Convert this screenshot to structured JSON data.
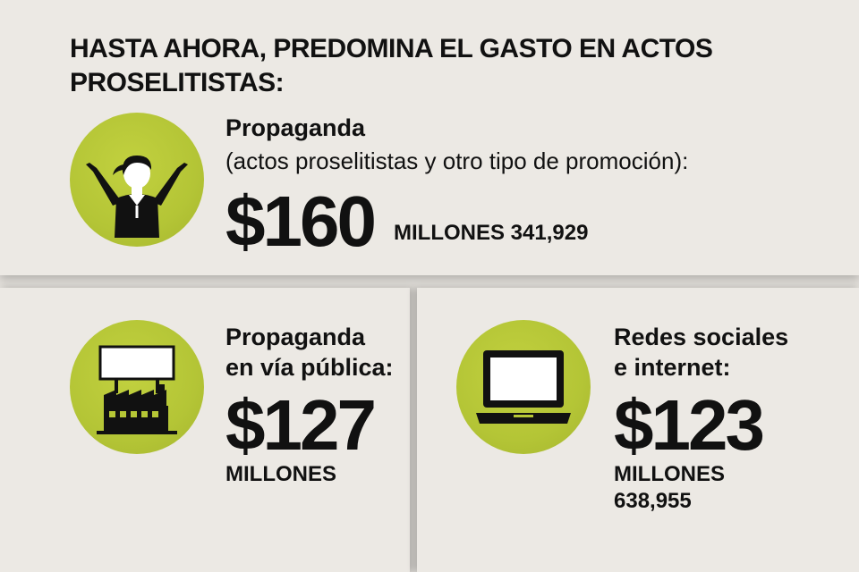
{
  "headline": {
    "line1": "HASTA AHORA, PREDOMINA EL GASTO EN ACTOS",
    "line2": "PROSELITISTAS:"
  },
  "colors": {
    "accent": "#b6c736",
    "background": "#ece9e4",
    "text": "#111111"
  },
  "items": [
    {
      "icon": "cheering-person-icon",
      "label": "Propaganda",
      "description": "(actos proselitistas y otro tipo de promoción):",
      "amount": "$160",
      "unit": "MILLONES 341,929"
    },
    {
      "icon": "billboard-street-icon",
      "label_line1": "Propaganda",
      "label_line2": "en vía pública:",
      "amount": "$127",
      "unit": "MILLONES"
    },
    {
      "icon": "laptop-icon",
      "label_line1": "Redes sociales",
      "label_line2": "e internet:",
      "amount": "$123",
      "unit_line1": "MILLONES",
      "unit_line2": "638,955"
    }
  ]
}
